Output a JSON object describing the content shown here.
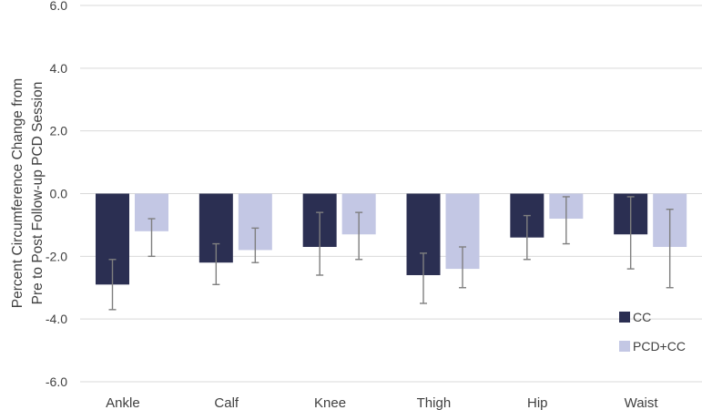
{
  "chart_data": {
    "type": "bar",
    "title": "",
    "xlabel": "",
    "ylabel_lines": [
      "Percent Circumference Change from",
      "Pre to Post Follow-up PCD Session"
    ],
    "ylim": [
      -6,
      6
    ],
    "yticks": [
      "6.0",
      "4.0",
      "2.0",
      "0.0",
      "-2.0",
      "-4.0",
      "-6.0"
    ],
    "ytick_values": [
      6,
      4,
      2,
      0,
      -2,
      -4,
      -6
    ],
    "grid": true,
    "legend_position": "bottom-right",
    "categories": [
      "Ankle",
      "Calf",
      "Knee",
      "Thigh",
      "Hip",
      "Waist"
    ],
    "series": [
      {
        "name": "CC",
        "color": "#2b2f52",
        "values": [
          -2.9,
          -2.2,
          -1.7,
          -2.6,
          -1.4,
          -1.3
        ],
        "error_low": [
          -3.7,
          -2.9,
          -2.6,
          -3.5,
          -2.1,
          -2.4
        ],
        "error_high": [
          -2.1,
          -1.6,
          -0.6,
          -1.9,
          -0.7,
          -0.1
        ]
      },
      {
        "name": "PCD+CC",
        "color": "#c3c7e4",
        "values": [
          -1.2,
          -1.8,
          -1.3,
          -2.4,
          -0.8,
          -1.7
        ],
        "error_low": [
          -2.0,
          -2.2,
          -2.1,
          -3.0,
          -1.6,
          -3.0
        ],
        "error_high": [
          -0.8,
          -1.1,
          -0.6,
          -1.7,
          -0.1,
          -0.5
        ]
      }
    ]
  }
}
